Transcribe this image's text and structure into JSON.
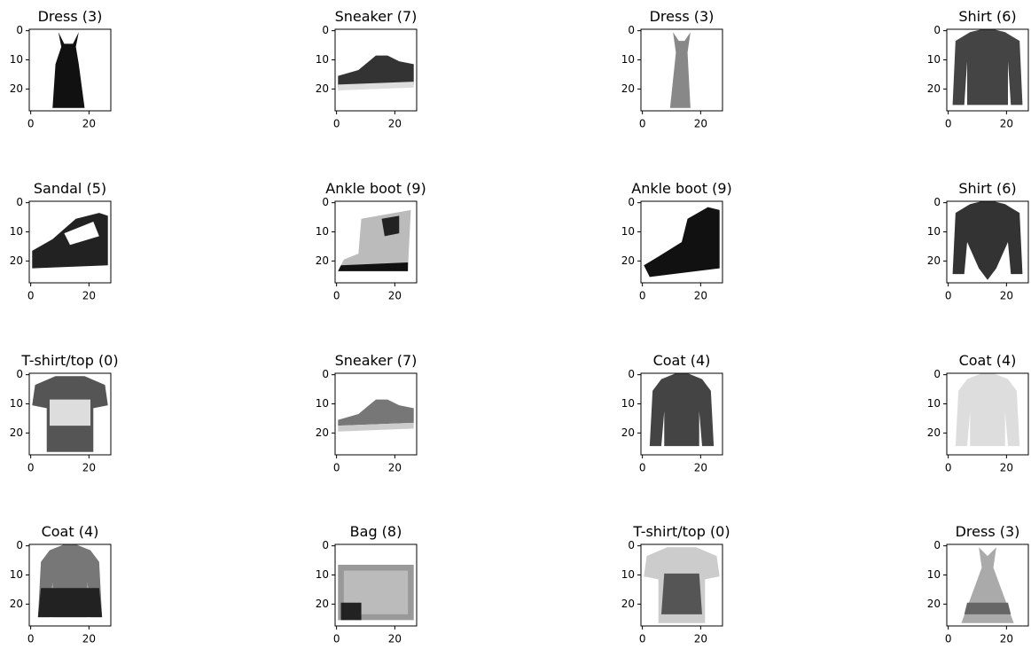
{
  "axes": {
    "xlim": [
      -0.5,
      27.5
    ],
    "ylim": [
      27.5,
      -0.5
    ],
    "xticks": [
      0,
      20
    ],
    "yticks": [
      0,
      10,
      20
    ]
  },
  "panels": [
    {
      "title": "Dress (3)"
    },
    {
      "title": "Sneaker (7)"
    },
    {
      "title": "Dress (3)"
    },
    {
      "title": "Shirt (6)"
    },
    {
      "title": "Sandal (5)"
    },
    {
      "title": "Ankle boot (9)"
    },
    {
      "title": "Ankle boot (9)"
    },
    {
      "title": "Shirt (6)"
    },
    {
      "title": "T-shirt/top (0)"
    },
    {
      "title": "Sneaker (7)"
    },
    {
      "title": "Coat (4)"
    },
    {
      "title": "Coat (4)"
    },
    {
      "title": "Coat (4)"
    },
    {
      "title": "Bag (8)"
    },
    {
      "title": "T-shirt/top (0)"
    },
    {
      "title": "Dress (3)"
    }
  ]
}
